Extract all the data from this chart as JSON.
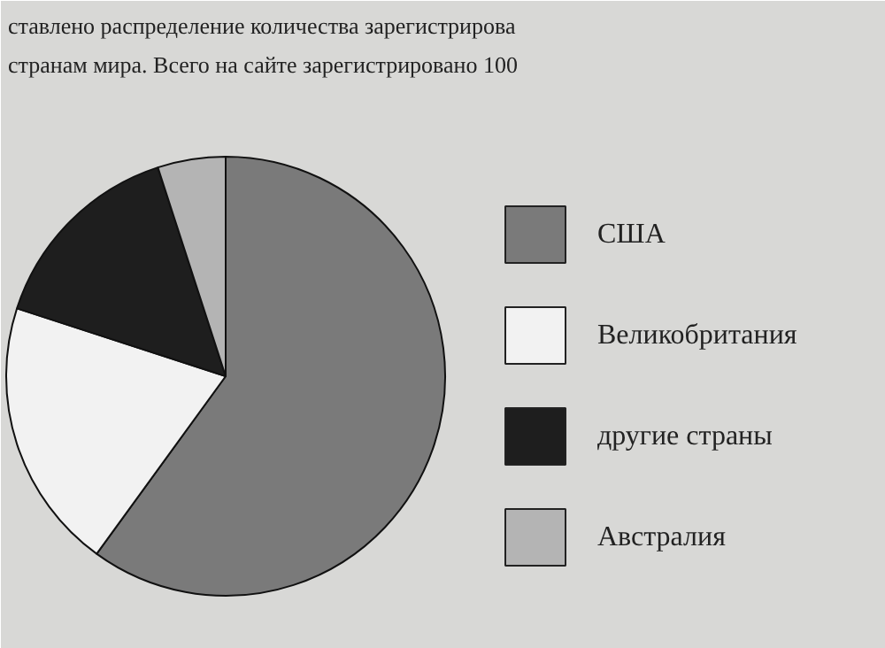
{
  "chart_data": {
    "type": "pie",
    "annotations": [
      "ставлено распределение количества зарегистрирова",
      "странам мира. Всего на сайте зарегистрировано 100"
    ],
    "categories": [
      "США",
      "Великобритания",
      "другие страны",
      "Австралия"
    ],
    "values": [
      60,
      20,
      15,
      5
    ],
    "colors": [
      "#7a7a7a",
      "#f2f2f2",
      "#1e1e1e",
      "#b4b4b4"
    ],
    "legend": "right"
  }
}
